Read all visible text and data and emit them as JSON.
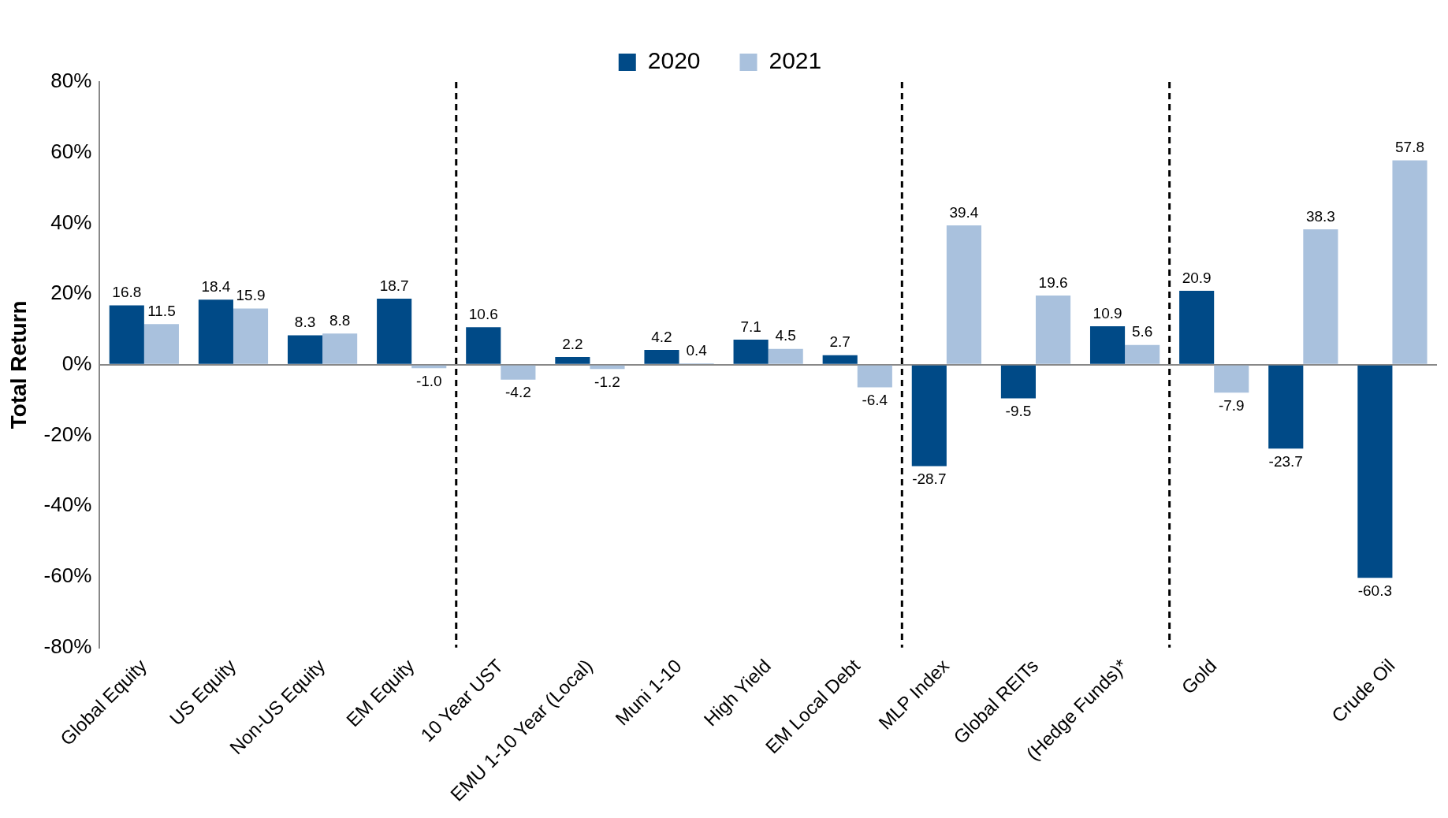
{
  "chart_data": {
    "type": "bar",
    "ylabel": "Total Return",
    "categories": [
      "Global Equity",
      "US Equity",
      "Non-US Equity",
      "EM Equity",
      "10 Year UST",
      "EMU 1-10 Year (Local)",
      "Muni 1-10",
      "High Yield",
      "EM Local Debt",
      "MLP Index",
      "Global REITs",
      "(Hedge Funds)*",
      "Gold",
      null,
      "Crude Oil"
    ],
    "series": [
      {
        "name": "2020",
        "color": "#004a87",
        "values": [
          16.8,
          18.4,
          8.3,
          18.7,
          10.6,
          2.2,
          4.2,
          7.1,
          2.7,
          -28.7,
          -9.5,
          10.9,
          20.9,
          -23.7,
          -60.3
        ],
        "value_labels": [
          "16.8",
          "18.4",
          "8.3",
          "18.7",
          "10.6",
          "2.2",
          "4.2",
          "7.1",
          "2.7",
          "-28.7",
          "-9.5",
          "10.9",
          "20.9",
          "-23.7",
          "-60.3"
        ]
      },
      {
        "name": "2021",
        "color": "#a9c1dd",
        "values": [
          11.5,
          15.9,
          8.8,
          -1.0,
          -4.2,
          -1.2,
          0.4,
          4.5,
          -6.4,
          39.4,
          19.6,
          5.6,
          -7.9,
          38.3,
          57.8
        ],
        "value_labels": [
          "11.5",
          "15.9",
          "8.8",
          "-1.0",
          "-4.2",
          "-1.2",
          "0.4",
          "4.5",
          "-6.4",
          "39.4",
          "19.6",
          "5.6",
          "-7.9",
          "38.3",
          "57.8"
        ]
      }
    ],
    "ylim": [
      -80,
      80
    ],
    "yticks": [
      {
        "value": -80,
        "label": "-80%"
      },
      {
        "value": -60,
        "label": "-60%"
      },
      {
        "value": -40,
        "label": "-40%"
      },
      {
        "value": -20,
        "label": "-20%"
      },
      {
        "value": 0,
        "label": "0%"
      },
      {
        "value": 20,
        "label": "20%"
      },
      {
        "value": 40,
        "label": "40%"
      },
      {
        "value": 60,
        "label": "60%"
      },
      {
        "value": 80,
        "label": "80%"
      }
    ],
    "legend": "top",
    "grid": false
  }
}
